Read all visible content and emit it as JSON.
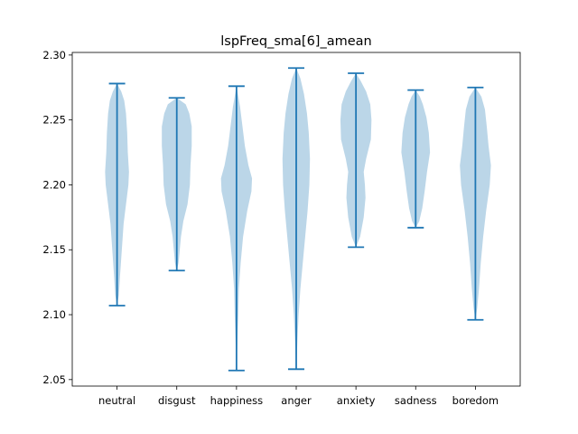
{
  "chart_data": {
    "type": "violin",
    "title": "lspFreq_sma[6]_amean",
    "xlabel": "",
    "ylabel": "",
    "ylim": [
      2.045,
      2.302
    ],
    "yticks": [
      2.05,
      2.1,
      2.15,
      2.2,
      2.25,
      2.3
    ],
    "ytick_labels": [
      "2.05",
      "2.10",
      "2.15",
      "2.20",
      "2.25",
      "2.30"
    ],
    "grid": false,
    "colors": {
      "body": "#1f77b4",
      "body_opacity": 0.3,
      "lines": "#1f77b4"
    },
    "categories": [
      "neutral",
      "disgust",
      "happiness",
      "anger",
      "anxiety",
      "sadness",
      "boredom"
    ],
    "violins": [
      {
        "category": "neutral",
        "min": 2.107,
        "max": 2.278,
        "profile": [
          [
            2.107,
            0.0
          ],
          [
            2.115,
            0.06
          ],
          [
            2.13,
            0.1
          ],
          [
            2.15,
            0.16
          ],
          [
            2.17,
            0.22
          ],
          [
            2.185,
            0.3
          ],
          [
            2.2,
            0.38
          ],
          [
            2.21,
            0.4
          ],
          [
            2.225,
            0.36
          ],
          [
            2.24,
            0.34
          ],
          [
            2.255,
            0.3
          ],
          [
            2.265,
            0.24
          ],
          [
            2.272,
            0.14
          ],
          [
            2.278,
            0.0
          ]
        ]
      },
      {
        "category": "disgust",
        "min": 2.134,
        "max": 2.267,
        "profile": [
          [
            2.134,
            0.0
          ],
          [
            2.14,
            0.06
          ],
          [
            2.15,
            0.1
          ],
          [
            2.16,
            0.14
          ],
          [
            2.172,
            0.22
          ],
          [
            2.185,
            0.36
          ],
          [
            2.2,
            0.44
          ],
          [
            2.215,
            0.46
          ],
          [
            2.23,
            0.5
          ],
          [
            2.245,
            0.5
          ],
          [
            2.255,
            0.42
          ],
          [
            2.262,
            0.3
          ],
          [
            2.267,
            0.0
          ]
        ]
      },
      {
        "category": "happiness",
        "min": 2.057,
        "max": 2.276,
        "profile": [
          [
            2.057,
            0.0
          ],
          [
            2.08,
            0.03
          ],
          [
            2.1,
            0.06
          ],
          [
            2.12,
            0.08
          ],
          [
            2.14,
            0.14
          ],
          [
            2.16,
            0.22
          ],
          [
            2.18,
            0.36
          ],
          [
            2.195,
            0.5
          ],
          [
            2.205,
            0.52
          ],
          [
            2.215,
            0.4
          ],
          [
            2.23,
            0.28
          ],
          [
            2.245,
            0.2
          ],
          [
            2.26,
            0.12
          ],
          [
            2.276,
            0.0
          ]
        ]
      },
      {
        "category": "anger",
        "min": 2.058,
        "max": 2.29,
        "profile": [
          [
            2.058,
            0.0
          ],
          [
            2.08,
            0.04
          ],
          [
            2.1,
            0.08
          ],
          [
            2.12,
            0.14
          ],
          [
            2.14,
            0.22
          ],
          [
            2.16,
            0.3
          ],
          [
            2.18,
            0.38
          ],
          [
            2.2,
            0.44
          ],
          [
            2.22,
            0.46
          ],
          [
            2.24,
            0.42
          ],
          [
            2.255,
            0.36
          ],
          [
            2.27,
            0.26
          ],
          [
            2.282,
            0.14
          ],
          [
            2.29,
            0.0
          ]
        ]
      },
      {
        "category": "anxiety",
        "min": 2.152,
        "max": 2.286,
        "profile": [
          [
            2.152,
            0.0
          ],
          [
            2.16,
            0.14
          ],
          [
            2.175,
            0.26
          ],
          [
            2.19,
            0.32
          ],
          [
            2.2,
            0.3
          ],
          [
            2.21,
            0.26
          ],
          [
            2.22,
            0.34
          ],
          [
            2.235,
            0.5
          ],
          [
            2.25,
            0.52
          ],
          [
            2.262,
            0.48
          ],
          [
            2.272,
            0.34
          ],
          [
            2.28,
            0.16
          ],
          [
            2.286,
            0.0
          ]
        ]
      },
      {
        "category": "sadness",
        "min": 2.167,
        "max": 2.273,
        "profile": [
          [
            2.167,
            0.0
          ],
          [
            2.172,
            0.12
          ],
          [
            2.182,
            0.22
          ],
          [
            2.195,
            0.3
          ],
          [
            2.21,
            0.38
          ],
          [
            2.225,
            0.48
          ],
          [
            2.24,
            0.44
          ],
          [
            2.252,
            0.36
          ],
          [
            2.262,
            0.24
          ],
          [
            2.268,
            0.14
          ],
          [
            2.273,
            0.0
          ]
        ]
      },
      {
        "category": "boredom",
        "min": 2.096,
        "max": 2.275,
        "profile": [
          [
            2.096,
            0.0
          ],
          [
            2.105,
            0.06
          ],
          [
            2.12,
            0.12
          ],
          [
            2.14,
            0.18
          ],
          [
            2.16,
            0.26
          ],
          [
            2.18,
            0.36
          ],
          [
            2.2,
            0.48
          ],
          [
            2.215,
            0.52
          ],
          [
            2.23,
            0.44
          ],
          [
            2.245,
            0.38
          ],
          [
            2.258,
            0.32
          ],
          [
            2.268,
            0.2
          ],
          [
            2.275,
            0.0
          ]
        ]
      }
    ]
  }
}
